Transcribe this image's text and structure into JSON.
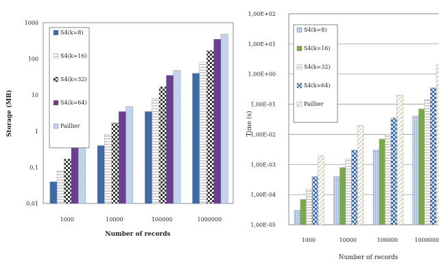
{
  "chart_data": [
    {
      "type": "bar",
      "scale": "log",
      "ylim": [
        0.01,
        1000
      ],
      "grid": false,
      "legend_position": "top-left",
      "xlabel": "Number of records",
      "ylabel": "Storage (MB)",
      "categories": [
        "1000",
        "10000",
        "100000",
        "1000000"
      ],
      "yticks": [
        "1000",
        "100",
        "10",
        "1",
        "0,1",
        "0,01"
      ],
      "series": [
        {
          "name": "S4(k=8)",
          "values": [
            0.04,
            0.4,
            3.5,
            40
          ],
          "color": "#3f6aa6",
          "pattern": "solid"
        },
        {
          "name": "S4(k=16)",
          "values": [
            0.08,
            0.8,
            8,
            80
          ],
          "color": "#ffffff",
          "pattern": "hatch"
        },
        {
          "name": "S4(k=32)",
          "values": [
            0.17,
            1.7,
            17,
            170
          ],
          "color": "#333333",
          "pattern": "check"
        },
        {
          "name": "S4(k=64)",
          "values": [
            0.35,
            3.5,
            35,
            350
          ],
          "color": "#6b3f8f",
          "pattern": "solid"
        },
        {
          "name": "Paillier",
          "values": [
            0.5,
            4.8,
            48,
            480
          ],
          "color": "#aec4e6",
          "pattern": "light"
        }
      ]
    },
    {
      "type": "bar",
      "scale": "log",
      "ylim": [
        1e-05,
        100
      ],
      "grid": true,
      "legend_position": "top-left",
      "xlabel": "Number of records",
      "ylabel": "Time (s)",
      "categories": [
        "1000",
        "10000",
        "100000",
        "1000000"
      ],
      "yticks": [
        "1,00E+02",
        "1,00E+01",
        "1,00E+00",
        "1,00E-01",
        "1,00E-02",
        "1,00E-03",
        "1,00E-04",
        "1,00E-05"
      ],
      "series": [
        {
          "name": "S4(k=8)",
          "values": [
            3e-05,
            0.0004,
            0.003,
            0.04
          ],
          "color": "#b7c9e6",
          "pattern": "dots"
        },
        {
          "name": "S4(k=16)",
          "values": [
            7e-05,
            0.0008,
            0.007,
            0.07
          ],
          "color": "#7aa84a",
          "pattern": "solid"
        },
        {
          "name": "S4(k=32)",
          "values": [
            0.00015,
            0.0015,
            0.01,
            0.14
          ],
          "color": "#ffffff",
          "pattern": "hatch"
        },
        {
          "name": "S4(k=64)",
          "values": [
            0.0004,
            0.003,
            0.035,
            0.35
          ],
          "color": "#3f6aa6",
          "pattern": "check"
        },
        {
          "name": "Paillier",
          "values": [
            0.002,
            0.02,
            0.2,
            2
          ],
          "color": "#ffffff",
          "pattern": "diag"
        }
      ]
    }
  ]
}
